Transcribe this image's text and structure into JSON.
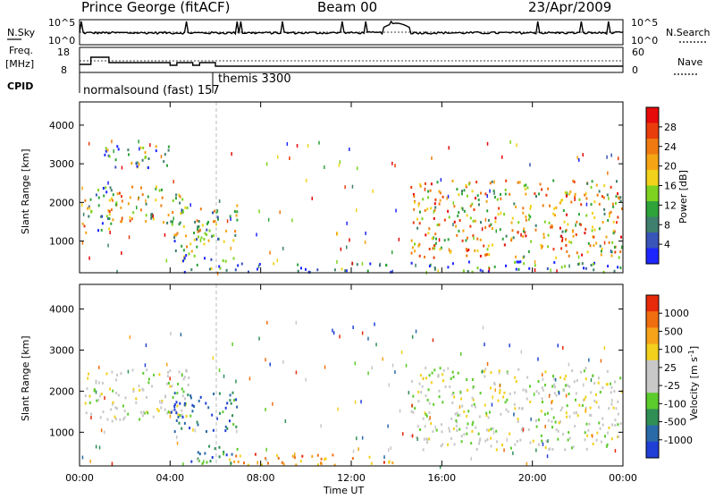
{
  "header": {
    "title": "Prince George (fitACF)",
    "beam": "Beam 00",
    "date": "23/Apr/2009"
  },
  "top_panels": {
    "nsky_label": "N.Sky",
    "nsearch_label": "N.Search",
    "freq_label_1": "Freq.",
    "freq_label_2": "[MHz]",
    "nave_label": "Nave",
    "cpid_label": "CPID",
    "left_ticks_noise": [
      "10^5",
      "10^0"
    ],
    "right_ticks_noise": [
      "10^5",
      "10^0"
    ],
    "left_ticks_freq": [
      "18",
      "8"
    ],
    "right_ticks_nave": [
      "60",
      "0"
    ],
    "cpid_1": "normalsound (fast) 157",
    "cpid_2": "themis 3300"
  },
  "chart_data": [
    {
      "type": "heatmap",
      "name": "power",
      "xlabel": "",
      "ylabel": "Slant Range [km]",
      "x_range_hours": [
        0,
        24
      ],
      "ylim": [
        180,
        4600
      ],
      "y_ticks": [
        "1000",
        "2000",
        "3000",
        "4000"
      ],
      "colorbar_title": "Power [dB]",
      "colorbar_ticks": [
        "4",
        "8",
        "12",
        "16",
        "20",
        "24",
        "28"
      ],
      "colorbar_colors": [
        "#1e26ff",
        "#3a55b8",
        "#3f7f6e",
        "#2ea33a",
        "#7ed321",
        "#f2d21a",
        "#f5a514",
        "#f07a10",
        "#ea3d0c",
        "#e60a0a"
      ],
      "regions": [
        {
          "t0": 0.0,
          "t1": 0.5,
          "r0": 1100,
          "r1": 2200,
          "level": 0.5
        },
        {
          "t0": 0.6,
          "t1": 1.4,
          "r0": 1200,
          "r1": 2500,
          "level": 0.3
        },
        {
          "t0": 1.2,
          "t1": 4.8,
          "r0": 1500,
          "r1": 2500,
          "level": 0.55
        },
        {
          "t0": 1.0,
          "t1": 4.0,
          "r0": 2900,
          "r1": 3500,
          "level": 0.3
        },
        {
          "t0": 4.0,
          "t1": 6.0,
          "r0": 700,
          "r1": 1600,
          "level": 0.4
        },
        {
          "t0": 5.0,
          "t1": 7.0,
          "r0": 1000,
          "r1": 2000,
          "level": 0.45
        },
        {
          "t0": 4.5,
          "t1": 7.0,
          "r0": 200,
          "r1": 700,
          "level": 0.25
        },
        {
          "t0": 6.5,
          "t1": 14.0,
          "r0": 180,
          "r1": 450,
          "level": 0.2
        },
        {
          "t0": 14.6,
          "t1": 24.0,
          "r0": 600,
          "r1": 2600,
          "level": 0.6
        },
        {
          "t0": 14.6,
          "t1": 24.0,
          "r0": 180,
          "r1": 500,
          "level": 0.15
        }
      ]
    },
    {
      "type": "heatmap",
      "name": "velocity",
      "xlabel": "Time UT",
      "ylabel": "Slant Range [km]",
      "x_range_hours": [
        0,
        24
      ],
      "x_ticks": [
        "00:00",
        "04:00",
        "08:00",
        "12:00",
        "16:00",
        "20:00",
        "00:00"
      ],
      "ylim": [
        180,
        4600
      ],
      "y_ticks": [
        "1000",
        "2000",
        "3000",
        "4000"
      ],
      "colorbar_title": "Velocity [m s^-1]",
      "colorbar_ticks": [
        "1000",
        "500",
        "100",
        "25",
        "-25",
        "-100",
        "-500",
        "-1000"
      ],
      "colorbar_colors": [
        "#1f3fd6",
        "#2a6aa8",
        "#2f8f55",
        "#5ccb2c",
        "#c8c8c8",
        "#c8c8c8",
        "#f3d01c",
        "#f6a31a",
        "#f06e10",
        "#e62a0a"
      ],
      "regions": [
        {
          "t0": 0.0,
          "t1": 4.8,
          "r0": 1300,
          "r1": 2600,
          "level": 0.5
        },
        {
          "t0": 4.0,
          "t1": 7.0,
          "r0": 1000,
          "r1": 2000,
          "level": 0.15
        },
        {
          "t0": 4.5,
          "t1": 7.0,
          "r0": 200,
          "r1": 700,
          "level": 0.2
        },
        {
          "t0": 6.5,
          "t1": 14.0,
          "r0": 180,
          "r1": 500,
          "level": 0.75
        },
        {
          "t0": 14.6,
          "t1": 24.0,
          "r0": 600,
          "r1": 2600,
          "level": 0.5
        }
      ]
    }
  ]
}
